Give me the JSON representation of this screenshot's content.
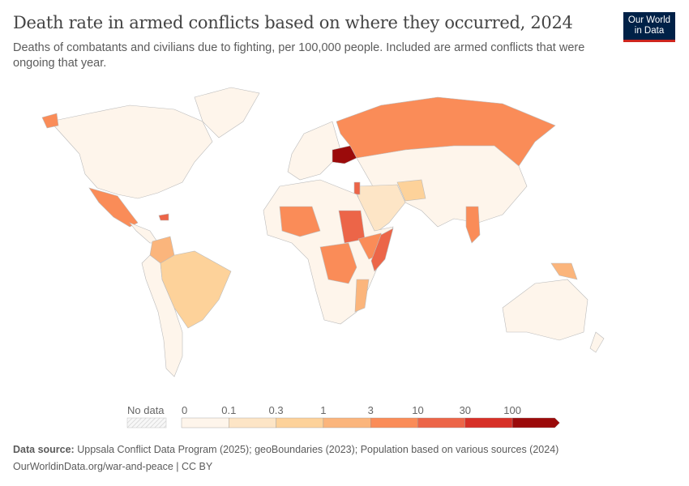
{
  "header": {
    "title": "Death rate in armed conflicts based on where they occurred, 2024",
    "subtitle": "Deaths of combatants and civilians due to fighting, per 100,000 people. Included are armed conflicts that were ongoing that year.",
    "logo_text": "Our World in Data"
  },
  "legend": {
    "no_data_label": "No data",
    "no_data_color": "#f2f2f2",
    "ticks": [
      "0",
      "0.1",
      "0.3",
      "1",
      "3",
      "10",
      "30",
      "100"
    ],
    "colors": [
      "#fef5eb",
      "#fde5c6",
      "#fdd29a",
      "#fbb57c",
      "#fa8c58",
      "#ec6548",
      "#d73027",
      "#9b0a0a"
    ]
  },
  "map": {
    "highlighted": [
      {
        "region": "Ukraine",
        "bin": 7
      },
      {
        "region": "Sudan",
        "bin": 5
      },
      {
        "region": "Somalia",
        "bin": 5
      },
      {
        "region": "Russia",
        "bin": 4
      },
      {
        "region": "Mexico",
        "bin": 4
      },
      {
        "region": "Myanmar",
        "bin": 4
      },
      {
        "region": "Mali",
        "bin": 4
      },
      {
        "region": "Burkina Faso",
        "bin": 5
      },
      {
        "region": "DR Congo",
        "bin": 4
      },
      {
        "region": "Ethiopia",
        "bin": 4
      },
      {
        "region": "Israel/Palestine",
        "bin": 5
      },
      {
        "region": "Haiti",
        "bin": 5
      },
      {
        "region": "Colombia",
        "bin": 3
      },
      {
        "region": "Brazil",
        "bin": 2
      },
      {
        "region": "Afghanistan",
        "bin": 2
      },
      {
        "region": "Niger",
        "bin": 3
      }
    ]
  },
  "footer": {
    "source_label": "Data source:",
    "source_text": "Uppsala Conflict Data Program (2025); geoBoundaries (2023); Population based on various sources (2024)",
    "url_text": "OurWorldinData.org/war-and-peace | CC BY"
  }
}
